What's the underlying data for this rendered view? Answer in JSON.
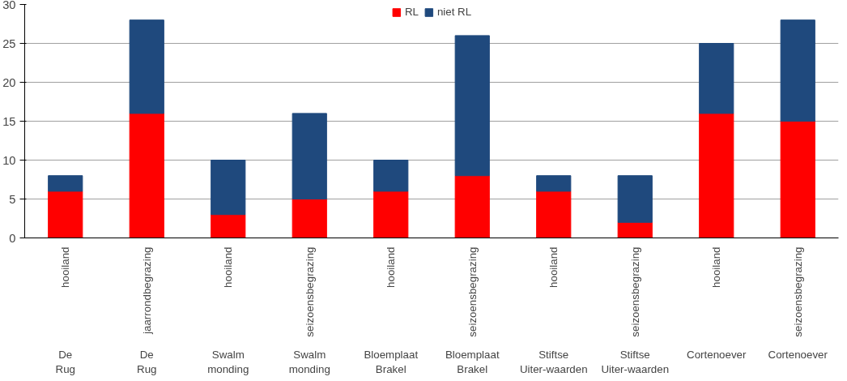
{
  "chart_data": {
    "type": "bar",
    "stacked": true,
    "categories": [
      "hooiland",
      "jaarrondbegrazing",
      "hooiland",
      "seizoensbegrazing",
      "hooiland",
      "seizoensbegrazing",
      "hooiland",
      "seizoensbegrazing",
      "hooiland",
      "seizoensbegrazing"
    ],
    "annotations": [
      "De Rug",
      "De Rug",
      "Swalm monding",
      "Swalm monding",
      "Bloemplaat Brakel",
      "Bloemplaat Brakel",
      "Stiftse Uiter-waarden",
      "Stiftse Uiter-waarden",
      "Cortenoever",
      "Cortenoever"
    ],
    "series": [
      {
        "name": "RL",
        "color": "#ff0000",
        "values": [
          6,
          16,
          3,
          5,
          6,
          8,
          6,
          2,
          16,
          15
        ]
      },
      {
        "name": "niet RL",
        "color": "#1f497d",
        "values": [
          2,
          12,
          7,
          11,
          4,
          18,
          2,
          6,
          9,
          13
        ]
      }
    ],
    "ylim": [
      0,
      30
    ],
    "yticks": [
      0,
      5,
      10,
      15,
      20,
      25,
      30
    ],
    "grid": "y",
    "legend": "top"
  }
}
